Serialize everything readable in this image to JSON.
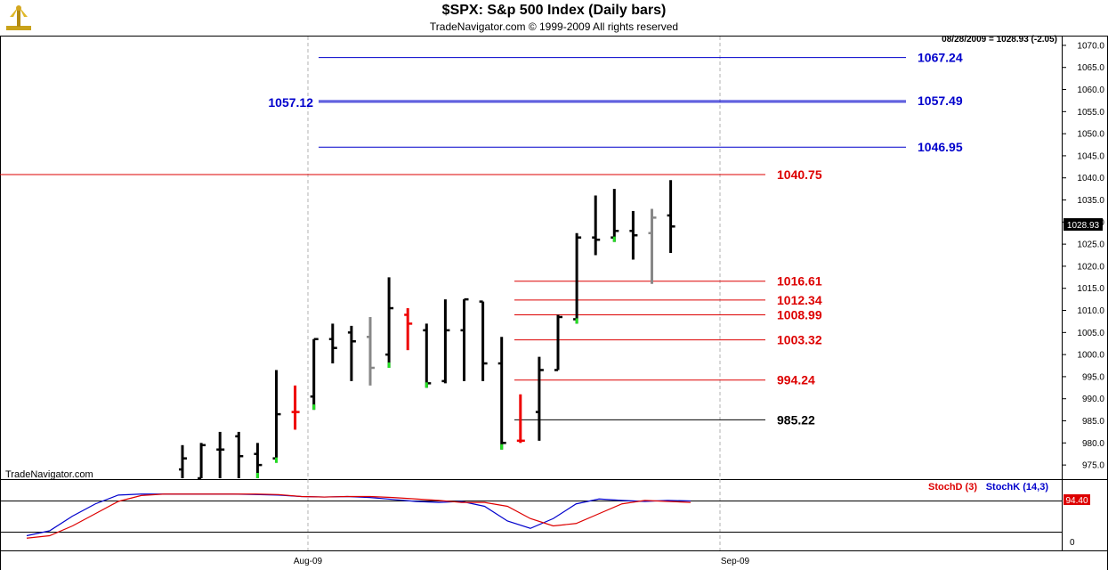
{
  "header": {
    "title": "$SPX:  S&p 500 Index  (Daily bars)",
    "subtitle": "TradeNavigator.com © 1999-2009 All rights reserved"
  },
  "chart_data": {
    "type": "ohlc",
    "price_readout": "08/28/2009 = 1028.93 (-2.05)",
    "last_price_tag": "1028.93",
    "watermark": "TradeNavigator.com",
    "y_ticks": [
      975,
      980,
      985,
      990,
      995,
      1000,
      1005,
      1010,
      1015,
      1020,
      1025,
      1030,
      1035,
      1040,
      1045,
      1050,
      1055,
      1060,
      1065,
      1070
    ],
    "ylim": [
      972,
      1072
    ],
    "x_labels": [
      "Aug-09",
      "Sep-09"
    ],
    "bars": [
      {
        "o": 974,
        "h": 979.5,
        "l": 972,
        "c": 976.5,
        "color": "black",
        "tick": null
      },
      {
        "o": 972,
        "h": 980,
        "l": 972,
        "c": 979.5,
        "color": "black",
        "tick": null
      },
      {
        "o": 978.5,
        "h": 982.5,
        "l": 972,
        "c": 978.5,
        "color": "black",
        "tick": null
      },
      {
        "o": 981.5,
        "h": 982.5,
        "l": 972,
        "c": 977,
        "color": "black",
        "tick": null
      },
      {
        "o": 977.5,
        "h": 980,
        "l": 972,
        "c": 975,
        "color": "black",
        "tick": "lime"
      },
      {
        "o": 976.5,
        "h": 996.5,
        "l": 975.5,
        "c": 986.5,
        "color": "black",
        "tick": "lime"
      },
      {
        "o": 987,
        "h": 993,
        "l": 983,
        "c": 987,
        "color": "red",
        "tick": null
      },
      {
        "o": 990.5,
        "h": 1003.5,
        "l": 987.5,
        "c": 1003.5,
        "color": "black",
        "tick": "lime"
      },
      {
        "o": 1003.5,
        "h": 1007,
        "l": 998,
        "c": 1001.5,
        "color": "black",
        "tick": null
      },
      {
        "o": 1005,
        "h": 1006.5,
        "l": 994,
        "c": 1003,
        "color": "black",
        "tick": null
      },
      {
        "o": 1004,
        "h": 1008.5,
        "l": 993,
        "c": 997,
        "color": "grey",
        "tick": null
      },
      {
        "o": 1000,
        "h": 1017.5,
        "l": 997,
        "c": 1010.5,
        "color": "black",
        "tick": "lime"
      },
      {
        "o": 1009,
        "h": 1010.5,
        "l": 1001,
        "c": 1007,
        "color": "red",
        "tick": null
      },
      {
        "o": 1005.5,
        "h": 1007,
        "l": 992.5,
        "c": 993.5,
        "color": "black",
        "tick": "lime"
      },
      {
        "o": 994,
        "h": 1012.5,
        "l": 993.5,
        "c": 1005.5,
        "color": "black",
        "tick": null
      },
      {
        "o": 1005.5,
        "h": 1012.5,
        "l": 994,
        "c": 1012.5,
        "color": "black",
        "tick": null
      },
      {
        "o": 1012,
        "h": 1012,
        "l": 994,
        "c": 998,
        "color": "black",
        "tick": null
      },
      {
        "o": 998,
        "h": 1004,
        "l": 978.5,
        "c": 980,
        "color": "black",
        "tick": "lime"
      },
      {
        "o": 980.5,
        "h": 991,
        "l": 980,
        "c": 980.5,
        "color": "red",
        "tick": null
      },
      {
        "o": 987,
        "h": 999.5,
        "l": 980.5,
        "c": 996.5,
        "color": "black",
        "tick": null
      },
      {
        "o": 996.5,
        "h": 1009,
        "l": 996.5,
        "c": 1008.5,
        "color": "black",
        "tick": null
      },
      {
        "o": 1008,
        "h": 1027.5,
        "l": 1007,
        "c": 1026.5,
        "color": "black",
        "tick": "lime"
      },
      {
        "o": 1026.5,
        "h": 1036,
        "l": 1022.5,
        "c": 1026,
        "color": "black",
        "tick": null
      },
      {
        "o": 1026.5,
        "h": 1037.5,
        "l": 1025.5,
        "c": 1028,
        "color": "black",
        "tick": "lime"
      },
      {
        "o": 1028,
        "h": 1032.5,
        "l": 1021.5,
        "c": 1027,
        "color": "black",
        "tick": null
      },
      {
        "o": 1027.5,
        "h": 1033,
        "l": 1016,
        "c": 1031,
        "color": "grey",
        "tick": null
      },
      {
        "o": 1031.5,
        "h": 1039.5,
        "l": 1023,
        "c": 1029,
        "color": "black",
        "tick": null
      }
    ],
    "levels": [
      {
        "value": 1067.24,
        "label": "1067.24",
        "color": "blue"
      },
      {
        "value": 1057.49,
        "label": "1057.49",
        "color": "blue"
      },
      {
        "value": 1057.12,
        "label": "1057.12",
        "color": "blue"
      },
      {
        "value": 1046.95,
        "label": "1046.95",
        "color": "blue"
      },
      {
        "value": 1040.75,
        "label": "1040.75",
        "color": "red"
      },
      {
        "value": 1016.61,
        "label": "1016.61",
        "color": "red"
      },
      {
        "value": 1012.34,
        "label": "1012.34",
        "color": "red"
      },
      {
        "value": 1008.99,
        "label": "1008.99",
        "color": "red"
      },
      {
        "value": 1003.32,
        "label": "1003.32",
        "color": "red"
      },
      {
        "value": 994.24,
        "label": "994.24",
        "color": "red"
      },
      {
        "value": 985.22,
        "label": "985.22",
        "color": "black"
      }
    ],
    "indicator": {
      "legend": [
        "StochD (3)",
        "StochK (14,3)"
      ],
      "zero_label": "0",
      "value_tag": "94.40",
      "ylim": [
        0,
        100
      ],
      "stochD": [
        5,
        10,
        30,
        55,
        80,
        92,
        95,
        95,
        95,
        95,
        95,
        94,
        90,
        89,
        90,
        90,
        88,
        85,
        82,
        78,
        78,
        70,
        45,
        30,
        35,
        55,
        75,
        82,
        80,
        78
      ],
      "stochK": [
        10,
        20,
        50,
        75,
        93,
        95,
        95,
        95,
        95,
        95,
        94,
        93,
        90,
        89,
        90,
        88,
        84,
        80,
        78,
        80,
        70,
        40,
        25,
        45,
        75,
        85,
        82,
        80,
        82,
        81
      ]
    }
  }
}
